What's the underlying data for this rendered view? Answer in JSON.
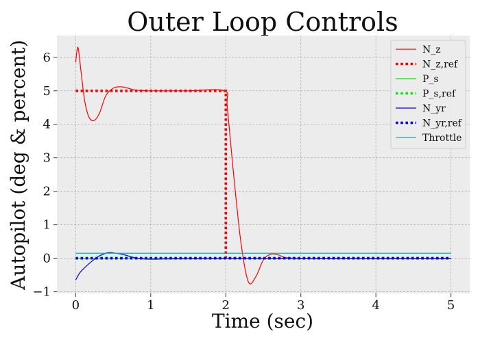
{
  "chart_data": {
    "type": "line",
    "title": "Outer Loop Controls",
    "xlabel": "Time (sec)",
    "ylabel": "Autopilot (deg & percent)",
    "xlim": [
      -0.25,
      5.25
    ],
    "ylim": [
      -1.05,
      6.65
    ],
    "xticks": [
      0,
      1,
      2,
      3,
      4,
      5
    ],
    "yticks": [
      -1,
      0,
      1,
      2,
      3,
      4,
      5,
      6
    ],
    "xtick_labels": [
      "0",
      "1",
      "2",
      "3",
      "4",
      "5"
    ],
    "ytick_labels": [
      "−1",
      "0",
      "1",
      "2",
      "3",
      "4",
      "5",
      "6"
    ],
    "grid": true,
    "legend_position": "top-right",
    "series": [
      {
        "name": "N_z",
        "color": "#ff0000",
        "style": "solid",
        "x": [
          0,
          0.03,
          0.07,
          0.12,
          0.18,
          0.25,
          0.32,
          0.4,
          0.5,
          0.6,
          0.7,
          0.8,
          1.0,
          1.5,
          1.98,
          2.02,
          2.1,
          2.2,
          2.3,
          2.4,
          2.5,
          2.6,
          2.7,
          2.8,
          3.0,
          3.5,
          4.0,
          5.0
        ],
        "y": [
          5.85,
          6.3,
          5.6,
          4.7,
          4.2,
          4.12,
          4.35,
          4.85,
          5.08,
          5.12,
          5.08,
          5.02,
          5.0,
          5.0,
          5.0,
          4.5,
          2.6,
          0.5,
          -0.7,
          -0.55,
          -0.05,
          0.12,
          0.1,
          0.02,
          0.0,
          0.0,
          0.0,
          0.0
        ]
      },
      {
        "name": "N_z,ref",
        "color": "#ff0000",
        "style": "dotted",
        "x": [
          0,
          2,
          2,
          5
        ],
        "y": [
          5,
          5,
          0,
          0
        ]
      },
      {
        "name": "P_s",
        "color": "#00ee00",
        "style": "solid",
        "x": [
          0,
          5
        ],
        "y": [
          0,
          0
        ]
      },
      {
        "name": "P_s,ref",
        "color": "#00ee00",
        "style": "dotted",
        "x": [
          0,
          5
        ],
        "y": [
          0,
          0
        ]
      },
      {
        "name": "N_yr",
        "color": "#0000ff",
        "style": "solid",
        "x": [
          0,
          0.05,
          0.12,
          0.2,
          0.3,
          0.4,
          0.45,
          0.5,
          0.6,
          0.7,
          0.8,
          0.9,
          1.0,
          1.2,
          1.5,
          2.0,
          3.0,
          4.0,
          5.0
        ],
        "y": [
          -0.65,
          -0.45,
          -0.28,
          -0.12,
          0.05,
          0.15,
          0.17,
          0.16,
          0.13,
          0.07,
          0.01,
          -0.02,
          -0.03,
          -0.02,
          -0.01,
          0.0,
          0.0,
          0.0,
          0.0
        ]
      },
      {
        "name": "N_yr,ref",
        "color": "#0000ff",
        "style": "dotted",
        "x": [
          0,
          5
        ],
        "y": [
          0,
          0
        ]
      },
      {
        "name": "Throttle",
        "color": "#00b3b3",
        "style": "solid",
        "x": [
          0,
          5
        ],
        "y": [
          0.15,
          0.15
        ]
      }
    ]
  }
}
